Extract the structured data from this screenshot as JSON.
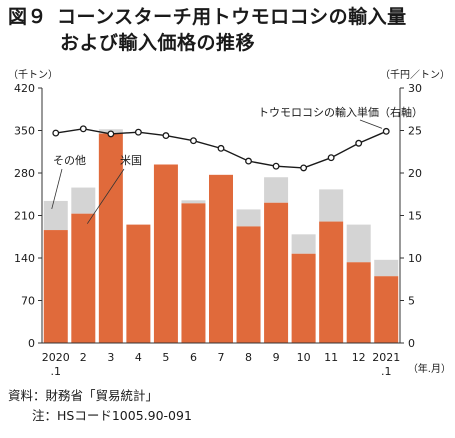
{
  "title": {
    "figure_label": "図９",
    "line1": "コーンスターチ用トウモロコシの輸入量",
    "line2": "および輸入価格の推移"
  },
  "footer": {
    "source": "資料：財務省「貿易統計」",
    "note": "注：HSコード1005.90-091"
  },
  "colors": {
    "us": "#e06a3b",
    "other": "#d4d4d4",
    "line": "#1a1a1a"
  },
  "chart_data": {
    "type": "bar+line",
    "categories": [
      "2020\n.1",
      "2",
      "3",
      "4",
      "5",
      "6",
      "7",
      "8",
      "9",
      "10",
      "11",
      "12",
      "2021\n.1"
    ],
    "x_unit_label": "（年.月）",
    "left_axis": {
      "unit_label": "（千トン）",
      "min": 0,
      "max": 420,
      "ticks": [
        0,
        70,
        140,
        210,
        280,
        350,
        420
      ]
    },
    "right_axis": {
      "unit_label": "（千円／トン）",
      "min": 0,
      "max": 30,
      "ticks": [
        0,
        5,
        10,
        15,
        20,
        25,
        30
      ]
    },
    "series": [
      {
        "name": "米国",
        "type": "bar",
        "axis": "left",
        "values": [
          186,
          213,
          345,
          195,
          294,
          230,
          277,
          192,
          231,
          147,
          200,
          133,
          110
        ]
      },
      {
        "name": "その他",
        "type": "bar",
        "axis": "left",
        "stacked": true,
        "values": [
          48,
          43,
          7,
          0,
          0,
          5,
          0,
          28,
          42,
          32,
          53,
          62,
          27
        ]
      },
      {
        "name": "トウモロコシの輸入単価（右軸）",
        "type": "line",
        "axis": "right",
        "values": [
          24.7,
          25.2,
          24.6,
          24.8,
          24.4,
          23.8,
          22.9,
          21.4,
          20.8,
          20.6,
          21.8,
          23.5,
          24.9
        ]
      }
    ],
    "grid": false,
    "legend": "inline annotations"
  }
}
